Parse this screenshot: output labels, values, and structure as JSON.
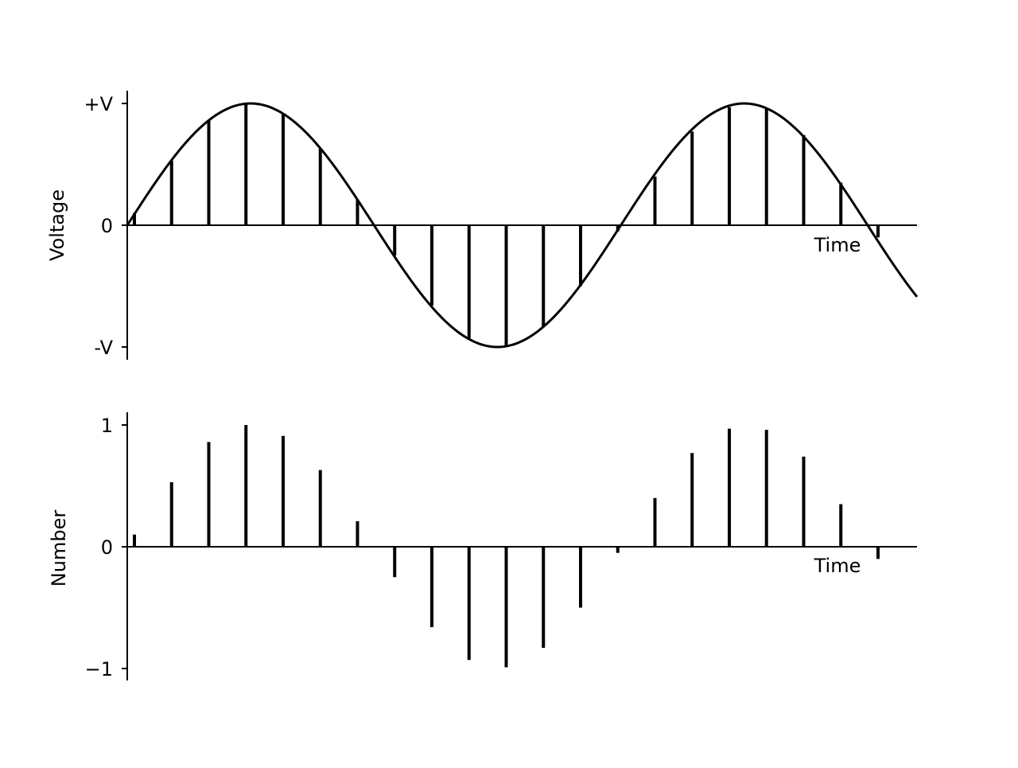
{
  "chart_data": [
    {
      "type": "line",
      "title": "",
      "xlabel": "Time",
      "ylabel": "Voltage",
      "ylim": [
        -1,
        1
      ],
      "yticks": [
        {
          "value": 1,
          "label": "+V"
        },
        {
          "value": 0,
          "label": "0"
        },
        {
          "value": -1,
          "label": "-V"
        }
      ],
      "grid": false,
      "sine_cycles": 1.6,
      "sample_count": 21,
      "samples": [
        0.1,
        0.53,
        0.86,
        1.0,
        0.91,
        0.63,
        0.21,
        -0.25,
        -0.66,
        -0.93,
        -0.99,
        -0.83,
        -0.5,
        -0.05,
        0.4,
        0.77,
        0.97,
        0.96,
        0.74,
        0.35,
        -0.1
      ]
    },
    {
      "type": "bar",
      "title": "",
      "xlabel": "Time",
      "ylabel": "Number",
      "ylim": [
        -1,
        1
      ],
      "yticks": [
        {
          "value": 1,
          "label": "1"
        },
        {
          "value": 0,
          "label": "0"
        },
        {
          "value": -1,
          "label": "−1"
        }
      ],
      "grid": false,
      "values": [
        0.1,
        0.53,
        0.86,
        1.0,
        0.91,
        0.63,
        0.21,
        -0.25,
        -0.66,
        -0.93,
        -0.99,
        -0.83,
        -0.5,
        -0.05,
        0.4,
        0.77,
        0.97,
        0.96,
        0.74,
        0.35,
        -0.1
      ]
    }
  ]
}
